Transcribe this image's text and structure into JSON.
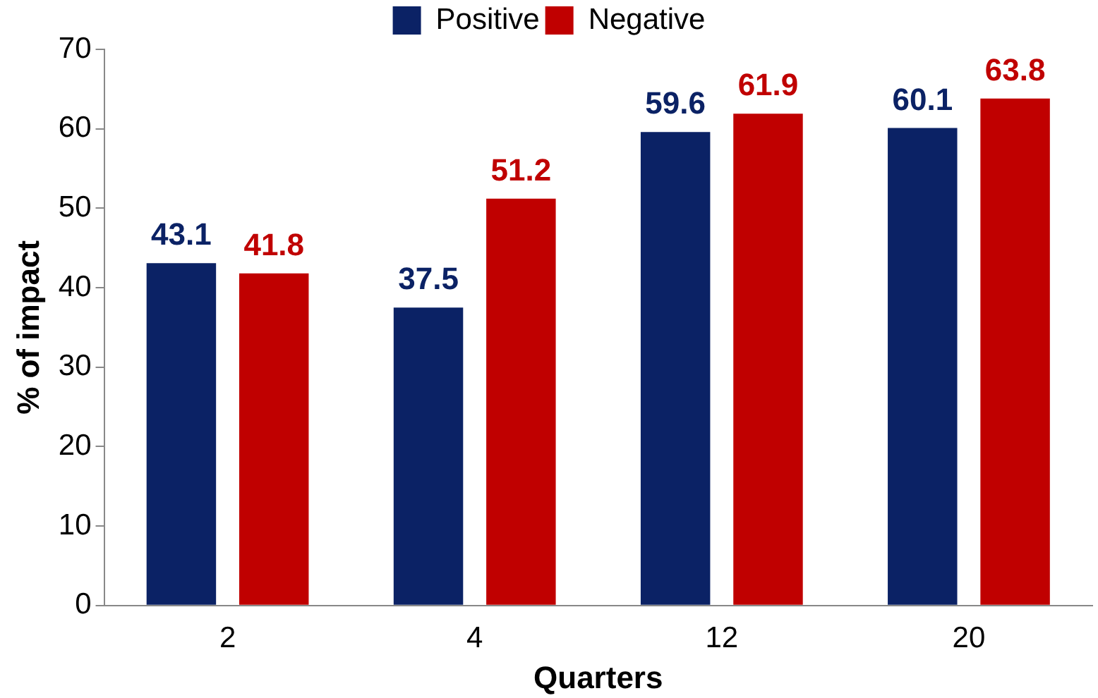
{
  "chart_data": {
    "type": "bar",
    "xlabel": "Quarters",
    "ylabel": "% of impact",
    "categories": [
      "2",
      "4",
      "12",
      "20"
    ],
    "series": [
      {
        "name": "Positive",
        "color": "#0b2265",
        "values": [
          43.1,
          37.5,
          59.6,
          60.1
        ]
      },
      {
        "name": "Negative",
        "color": "#c00000",
        "values": [
          41.8,
          51.2,
          61.9,
          63.8
        ]
      }
    ],
    "ylim": [
      0,
      70
    ],
    "yticks": [
      0,
      10,
      20,
      30,
      40,
      50,
      60,
      70
    ],
    "grid": false,
    "legend": "top",
    "data_labels": true
  }
}
